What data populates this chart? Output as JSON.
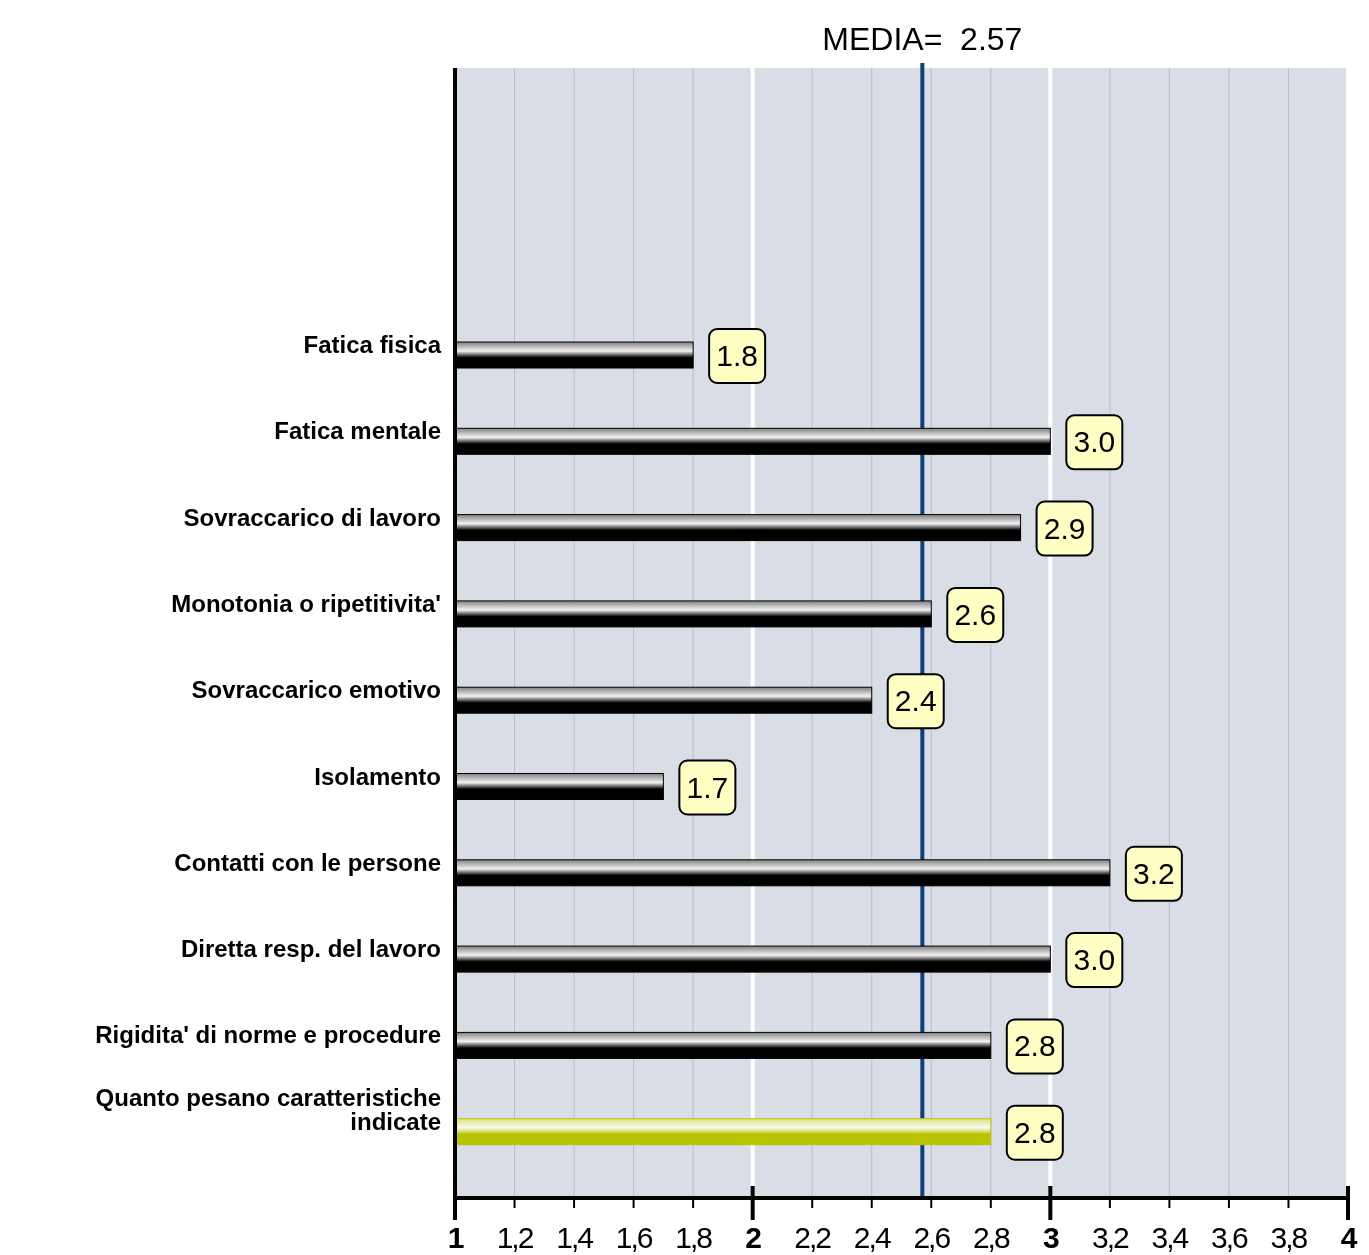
{
  "chart_data": {
    "type": "bar",
    "orientation": "horizontal",
    "categories": [
      "Fatica fisica",
      "Fatica mentale",
      "Sovraccarico di lavoro",
      "Monotonia o ripetitivita'",
      "Sovraccarico emotivo",
      "Isolamento",
      "Contatti con le persone",
      "Diretta resp. del lavoro",
      "Rigidita' di norme e procedure",
      "Quanto pesano caratteristiche indicate"
    ],
    "values": [
      1.8,
      3.0,
      2.9,
      2.6,
      2.4,
      1.7,
      3.2,
      3.0,
      2.8,
      2.8
    ],
    "value_labels": [
      "1.8",
      "3.0",
      "2.9",
      "2.6",
      "2.4",
      "1.7",
      "3.2",
      "3.0",
      "2.8",
      "2.8"
    ],
    "colors": [
      "#000000",
      "#000000",
      "#000000",
      "#000000",
      "#000000",
      "#000000",
      "#000000",
      "#000000",
      "#000000",
      "#b8c400"
    ],
    "xlim": [
      1,
      4
    ],
    "xticks": [
      1,
      {
        "value": 1.2,
        "label": "1,2"
      },
      {
        "value": 1.4,
        "label": "1,4"
      },
      {
        "value": 1.6,
        "label": "1,6"
      },
      {
        "value": 1.8,
        "label": "1,8"
      },
      2,
      {
        "value": 2.2,
        "label": "2,2"
      },
      {
        "value": 2.4,
        "label": "2,4"
      },
      {
        "value": 2.6,
        "label": "2,6"
      },
      {
        "value": 2.8,
        "label": "2,8"
      },
      3,
      {
        "value": 3.2,
        "label": "3,2"
      },
      {
        "value": 3.4,
        "label": "3,4"
      },
      {
        "value": 3.6,
        "label": "3,6"
      },
      {
        "value": 3.8,
        "label": "3,8"
      },
      4
    ],
    "grid": "x",
    "ref_lines": [
      {
        "axis": "x",
        "value": 2.57,
        "label": "MEDIA=  2.57",
        "color": "#0d3f7a"
      }
    ]
  }
}
